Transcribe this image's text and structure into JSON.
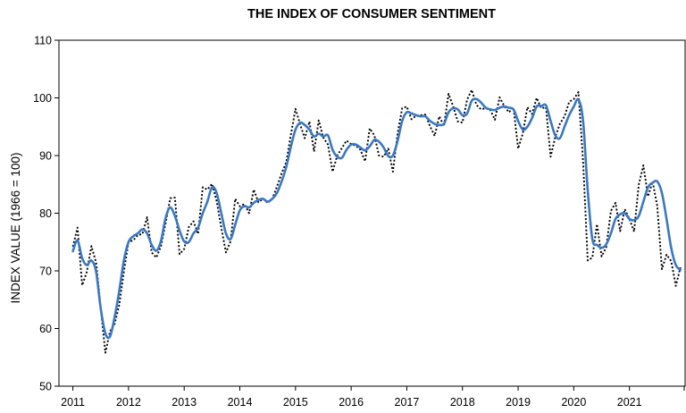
{
  "chart_data": {
    "type": "line",
    "title": "THE INDEX OF CONSUMER SENTIMENT",
    "xlabel": "",
    "ylabel": "INDEX VALUE (1966 = 100)",
    "ylim": [
      50,
      110
    ],
    "xlim": [
      2010.75,
      2022.0
    ],
    "yticks": [
      "50",
      "60",
      "70",
      "80",
      "90",
      "100",
      "110"
    ],
    "xticks": [
      "2011",
      "2012",
      "2013",
      "2014",
      "2015",
      "2016",
      "2017",
      "2018",
      "2019",
      "2020",
      "2021"
    ],
    "grid": false,
    "legend": "none",
    "colors": {
      "monthly": "#000000",
      "smoothed": "#3a78c2"
    },
    "series": [
      {
        "style": "dotted",
        "color": "#000000",
        "x": [
          "2011-01",
          "2011-02",
          "2011-03",
          "2011-04",
          "2011-05",
          "2011-06",
          "2011-07",
          "2011-08",
          "2011-09",
          "2011-10",
          "2011-11",
          "2011-12",
          "2012-01",
          "2012-02",
          "2012-03",
          "2012-04",
          "2012-05",
          "2012-06",
          "2012-07",
          "2012-08",
          "2012-09",
          "2012-10",
          "2012-11",
          "2012-12",
          "2013-01",
          "2013-02",
          "2013-03",
          "2013-04",
          "2013-05",
          "2013-06",
          "2013-07",
          "2013-08",
          "2013-09",
          "2013-10",
          "2013-11",
          "2013-12",
          "2014-01",
          "2014-02",
          "2014-03",
          "2014-04",
          "2014-05",
          "2014-06",
          "2014-07",
          "2014-08",
          "2014-09",
          "2014-10",
          "2014-11",
          "2014-12",
          "2015-01",
          "2015-02",
          "2015-03",
          "2015-04",
          "2015-05",
          "2015-06",
          "2015-07",
          "2015-08",
          "2015-09",
          "2015-10",
          "2015-11",
          "2015-12",
          "2016-01",
          "2016-02",
          "2016-03",
          "2016-04",
          "2016-05",
          "2016-06",
          "2016-07",
          "2016-08",
          "2016-09",
          "2016-10",
          "2016-11",
          "2016-12",
          "2017-01",
          "2017-02",
          "2017-03",
          "2017-04",
          "2017-05",
          "2017-06",
          "2017-07",
          "2017-08",
          "2017-09",
          "2017-10",
          "2017-11",
          "2017-12",
          "2018-01",
          "2018-02",
          "2018-03",
          "2018-04",
          "2018-05",
          "2018-06",
          "2018-07",
          "2018-08",
          "2018-09",
          "2018-10",
          "2018-11",
          "2018-12",
          "2019-01",
          "2019-02",
          "2019-03",
          "2019-04",
          "2019-05",
          "2019-06",
          "2019-07",
          "2019-08",
          "2019-09",
          "2019-10",
          "2019-11",
          "2019-12",
          "2020-01",
          "2020-02",
          "2020-03",
          "2020-04",
          "2020-05",
          "2020-06",
          "2020-07",
          "2020-08",
          "2020-09",
          "2020-10",
          "2020-11",
          "2020-12",
          "2021-01",
          "2021-02",
          "2021-03",
          "2021-04",
          "2021-05",
          "2021-06",
          "2021-07",
          "2021-08",
          "2021-09",
          "2021-10",
          "2021-11",
          "2021-12"
        ],
        "values": [
          74.2,
          77.5,
          67.5,
          69.8,
          74.3,
          71.5,
          63.7,
          55.8,
          59.5,
          60.8,
          64.1,
          69.9,
          75.0,
          75.3,
          76.2,
          76.4,
          79.3,
          73.2,
          72.3,
          74.3,
          78.3,
          82.6,
          82.7,
          72.9,
          73.8,
          77.6,
          78.6,
          76.4,
          84.5,
          84.1,
          85.1,
          82.1,
          77.5,
          73.2,
          75.1,
          82.5,
          81.2,
          81.6,
          80.0,
          84.1,
          81.9,
          82.5,
          81.8,
          82.5,
          84.6,
          86.9,
          88.8,
          93.6,
          98.1,
          95.4,
          93.0,
          95.9,
          90.7,
          96.1,
          93.1,
          91.9,
          87.2,
          90.0,
          91.3,
          92.6,
          92.0,
          91.7,
          91.0,
          89.0,
          94.7,
          93.5,
          90.0,
          89.8,
          91.2,
          87.2,
          93.8,
          98.2,
          98.5,
          96.3,
          96.9,
          97.0,
          97.1,
          95.1,
          93.4,
          96.8,
          95.1,
          100.7,
          98.5,
          95.9,
          95.7,
          99.7,
          101.4,
          98.8,
          98.0,
          98.2,
          97.9,
          96.2,
          100.1,
          98.6,
          97.5,
          98.3,
          91.2,
          93.8,
          98.4,
          97.2,
          100.0,
          98.2,
          98.4,
          89.8,
          93.2,
          95.5,
          96.8,
          99.3,
          99.8,
          101.0,
          89.1,
          71.8,
          72.3,
          78.1,
          72.5,
          74.1,
          80.4,
          81.8,
          76.9,
          80.7,
          79.0,
          76.8,
          84.9,
          88.3,
          82.9,
          85.5,
          81.2,
          70.3,
          72.8,
          71.7,
          67.4,
          70.6
        ]
      },
      {
        "style": "solid",
        "color": "#3a78c2",
        "x": [
          "2011-01",
          "2011-02",
          "2011-03",
          "2011-04",
          "2011-05",
          "2011-06",
          "2011-07",
          "2011-08",
          "2011-09",
          "2011-10",
          "2011-11",
          "2011-12",
          "2012-01",
          "2012-02",
          "2012-03",
          "2012-04",
          "2012-05",
          "2012-06",
          "2012-07",
          "2012-08",
          "2012-09",
          "2012-10",
          "2012-11",
          "2012-12",
          "2013-01",
          "2013-02",
          "2013-03",
          "2013-04",
          "2013-05",
          "2013-06",
          "2013-07",
          "2013-08",
          "2013-09",
          "2013-10",
          "2013-11",
          "2013-12",
          "2014-01",
          "2014-02",
          "2014-03",
          "2014-04",
          "2014-05",
          "2014-06",
          "2014-07",
          "2014-08",
          "2014-09",
          "2014-10",
          "2014-11",
          "2014-12",
          "2015-01",
          "2015-02",
          "2015-03",
          "2015-04",
          "2015-05",
          "2015-06",
          "2015-07",
          "2015-08",
          "2015-09",
          "2015-10",
          "2015-11",
          "2015-12",
          "2016-01",
          "2016-02",
          "2016-03",
          "2016-04",
          "2016-05",
          "2016-06",
          "2016-07",
          "2016-08",
          "2016-09",
          "2016-10",
          "2016-11",
          "2016-12",
          "2017-01",
          "2017-02",
          "2017-03",
          "2017-04",
          "2017-05",
          "2017-06",
          "2017-07",
          "2017-08",
          "2017-09",
          "2017-10",
          "2017-11",
          "2017-12",
          "2018-01",
          "2018-02",
          "2018-03",
          "2018-04",
          "2018-05",
          "2018-06",
          "2018-07",
          "2018-08",
          "2018-09",
          "2018-10",
          "2018-11",
          "2018-12",
          "2019-01",
          "2019-02",
          "2019-03",
          "2019-04",
          "2019-05",
          "2019-06",
          "2019-07",
          "2019-08",
          "2019-09",
          "2019-10",
          "2019-11",
          "2019-12",
          "2020-01",
          "2020-02",
          "2020-03",
          "2020-04",
          "2020-05",
          "2020-06",
          "2020-07",
          "2020-08",
          "2020-09",
          "2020-10",
          "2020-11",
          "2020-12",
          "2021-01",
          "2021-02",
          "2021-03",
          "2021-04",
          "2021-05",
          "2021-06",
          "2021-07",
          "2021-08",
          "2021-09",
          "2021-10",
          "2021-11",
          "2021-12"
        ],
        "values": [
          73.4,
          75.3,
          72.2,
          71.0,
          71.8,
          69.9,
          63.5,
          59.2,
          58.6,
          62.0,
          66.5,
          71.8,
          75.0,
          76.0,
          76.5,
          77.2,
          76.5,
          74.5,
          73.5,
          75.2,
          79.2,
          81.0,
          79.5,
          77.0,
          75.1,
          75.0,
          76.5,
          77.5,
          80.0,
          82.0,
          84.5,
          83.5,
          80.0,
          76.5,
          75.5,
          78.0,
          80.5,
          81.2,
          81.0,
          81.8,
          82.3,
          82.5,
          82.0,
          82.5,
          83.5,
          85.5,
          88.0,
          91.5,
          94.5,
          95.7,
          95.3,
          94.5,
          93.3,
          93.8,
          93.3,
          93.5,
          91.0,
          89.8,
          89.6,
          91.0,
          91.9,
          91.9,
          91.4,
          90.9,
          91.6,
          92.7,
          92.4,
          91.4,
          89.9,
          90.0,
          92.5,
          96.0,
          97.5,
          97.3,
          97.0,
          96.8,
          96.8,
          96.0,
          95.5,
          95.3,
          95.5,
          97.5,
          98.2,
          98.0,
          97.0,
          97.3,
          99.5,
          99.8,
          99.2,
          98.3,
          98.0,
          97.9,
          98.3,
          98.5,
          98.3,
          98.0,
          96.0,
          94.5,
          95.0,
          96.5,
          98.5,
          98.6,
          98.7,
          96.0,
          93.5,
          93.0,
          95.0,
          97.0,
          98.5,
          99.7,
          96.0,
          84.0,
          75.5,
          74.5,
          74.0,
          74.6,
          76.5,
          79.0,
          79.8,
          80.0,
          79.0,
          78.8,
          79.5,
          82.0,
          84.5,
          85.3,
          85.5,
          83.5,
          79.0,
          74.0,
          71.0,
          70.2
        ]
      }
    ]
  }
}
